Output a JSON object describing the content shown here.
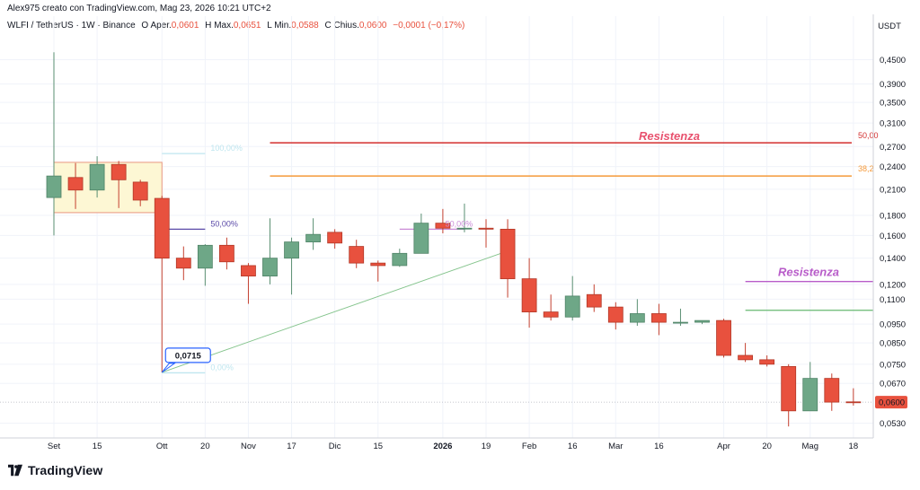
{
  "header": {
    "credit": "Alex975 creato con TradingView.com, Mag 23, 2026 10:21 UTC+2",
    "symbol": "WLFI / TetherUS · 1W · Binance",
    "open_label": "O",
    "open_key": "Aper.",
    "open": "0,0601",
    "high_label": "H",
    "high_key": "Max.",
    "high": "0,0651",
    "low_label": "L",
    "low_key": "Min.",
    "low": "0,0588",
    "close_label": "C",
    "close_key": "Chius.",
    "close": "0,0600",
    "change": "−0,0001 (−0,17%)"
  },
  "brand": {
    "name": "TradingView",
    "logo_icon": "tradingview-logo-icon"
  },
  "colors": {
    "up": "#6ea787",
    "down": "#e8513e",
    "resist_red": "#d32f2f",
    "resist_orange": "#f59a3a",
    "resist_purple": "#b85cc9",
    "support_green": "#67b871",
    "box_fill": "#fdf7d4"
  },
  "chart_data": {
    "type": "candlestick",
    "currency": "USDT",
    "y_scale": "log",
    "ylim": [
      0.0486,
      0.5232
    ],
    "y_ticks": [
      {
        "value": 0.45,
        "label": "0,4500"
      },
      {
        "value": 0.39,
        "label": "0,3900"
      },
      {
        "value": 0.35,
        "label": "0,3500"
      },
      {
        "value": 0.31,
        "label": "0,3100"
      },
      {
        "value": 0.27,
        "label": "0,2700"
      },
      {
        "value": 0.24,
        "label": "0,2400"
      },
      {
        "value": 0.21,
        "label": "0,2100"
      },
      {
        "value": 0.18,
        "label": "0,1800"
      },
      {
        "value": 0.16,
        "label": "0,1600"
      },
      {
        "value": 0.14,
        "label": "0,1400"
      },
      {
        "value": 0.12,
        "label": "0,1200"
      },
      {
        "value": 0.11,
        "label": "0,1100"
      },
      {
        "value": 0.095,
        "label": "0,0950"
      },
      {
        "value": 0.085,
        "label": "0,0850"
      },
      {
        "value": 0.075,
        "label": "0,0750"
      },
      {
        "value": 0.067,
        "label": "0,0670"
      },
      {
        "value": 0.053,
        "label": "0,0530"
      }
    ],
    "x_ticks": [
      {
        "index": 0,
        "label": "Set",
        "bold": false
      },
      {
        "index": 2,
        "label": "15",
        "bold": false
      },
      {
        "index": 5,
        "label": "Ott",
        "bold": false
      },
      {
        "index": 7,
        "label": "20",
        "bold": false
      },
      {
        "index": 9,
        "label": "Nov",
        "bold": false
      },
      {
        "index": 11,
        "label": "17",
        "bold": false
      },
      {
        "index": 13,
        "label": "Dic",
        "bold": false
      },
      {
        "index": 15,
        "label": "15",
        "bold": false
      },
      {
        "index": 18,
        "label": "2026",
        "bold": true
      },
      {
        "index": 20,
        "label": "19",
        "bold": false
      },
      {
        "index": 22,
        "label": "Feb",
        "bold": false
      },
      {
        "index": 24,
        "label": "16",
        "bold": false
      },
      {
        "index": 26,
        "label": "Mar",
        "bold": false
      },
      {
        "index": 28,
        "label": "16",
        "bold": false
      },
      {
        "index": 31,
        "label": "Apr",
        "bold": false
      },
      {
        "index": 33,
        "label": "20",
        "bold": false
      },
      {
        "index": 35,
        "label": "Mag",
        "bold": false
      },
      {
        "index": 37,
        "label": "18",
        "bold": false
      }
    ],
    "candles": [
      {
        "o": 0.2,
        "h": 0.47,
        "l": 0.16,
        "c": 0.227
      },
      {
        "o": 0.225,
        "h": 0.245,
        "l": 0.187,
        "c": 0.209
      },
      {
        "o": 0.209,
        "h": 0.255,
        "l": 0.2,
        "c": 0.243
      },
      {
        "o": 0.243,
        "h": 0.248,
        "l": 0.188,
        "c": 0.222
      },
      {
        "o": 0.219,
        "h": 0.222,
        "l": 0.19,
        "c": 0.197
      },
      {
        "o": 0.199,
        "h": 0.202,
        "l": 0.0715,
        "c": 0.14
      },
      {
        "o": 0.14,
        "h": 0.15,
        "l": 0.123,
        "c": 0.132
      },
      {
        "o": 0.132,
        "h": 0.152,
        "l": 0.119,
        "c": 0.151
      },
      {
        "o": 0.151,
        "h": 0.158,
        "l": 0.131,
        "c": 0.137
      },
      {
        "o": 0.134,
        "h": 0.136,
        "l": 0.107,
        "c": 0.126
      },
      {
        "o": 0.126,
        "h": 0.177,
        "l": 0.12,
        "c": 0.14
      },
      {
        "o": 0.14,
        "h": 0.158,
        "l": 0.113,
        "c": 0.154
      },
      {
        "o": 0.154,
        "h": 0.177,
        "l": 0.147,
        "c": 0.161
      },
      {
        "o": 0.163,
        "h": 0.166,
        "l": 0.148,
        "c": 0.153
      },
      {
        "o": 0.15,
        "h": 0.156,
        "l": 0.132,
        "c": 0.136
      },
      {
        "o": 0.136,
        "h": 0.138,
        "l": 0.122,
        "c": 0.134
      },
      {
        "o": 0.134,
        "h": 0.148,
        "l": 0.133,
        "c": 0.144
      },
      {
        "o": 0.144,
        "h": 0.182,
        "l": 0.144,
        "c": 0.172
      },
      {
        "o": 0.172,
        "h": 0.187,
        "l": 0.162,
        "c": 0.167
      },
      {
        "o": 0.167,
        "h": 0.193,
        "l": 0.163,
        "c": 0.167
      },
      {
        "o": 0.167,
        "h": 0.176,
        "l": 0.149,
        "c": 0.166
      },
      {
        "o": 0.166,
        "h": 0.176,
        "l": 0.111,
        "c": 0.124
      },
      {
        "o": 0.124,
        "h": 0.14,
        "l": 0.093,
        "c": 0.102
      },
      {
        "o": 0.102,
        "h": 0.113,
        "l": 0.097,
        "c": 0.099
      },
      {
        "o": 0.099,
        "h": 0.126,
        "l": 0.097,
        "c": 0.112
      },
      {
        "o": 0.113,
        "h": 0.12,
        "l": 0.102,
        "c": 0.105
      },
      {
        "o": 0.105,
        "h": 0.108,
        "l": 0.092,
        "c": 0.096
      },
      {
        "o": 0.096,
        "h": 0.11,
        "l": 0.094,
        "c": 0.101
      },
      {
        "o": 0.101,
        "h": 0.107,
        "l": 0.089,
        "c": 0.096
      },
      {
        "o": 0.096,
        "h": 0.104,
        "l": 0.094,
        "c": 0.096
      },
      {
        "o": 0.096,
        "h": 0.097,
        "l": 0.095,
        "c": 0.097
      },
      {
        "o": 0.097,
        "h": 0.098,
        "l": 0.078,
        "c": 0.079
      },
      {
        "o": 0.079,
        "h": 0.085,
        "l": 0.076,
        "c": 0.077
      },
      {
        "o": 0.077,
        "h": 0.079,
        "l": 0.074,
        "c": 0.075
      },
      {
        "o": 0.074,
        "h": 0.075,
        "l": 0.052,
        "c": 0.057
      },
      {
        "o": 0.057,
        "h": 0.076,
        "l": 0.057,
        "c": 0.069
      },
      {
        "o": 0.069,
        "h": 0.071,
        "l": 0.057,
        "c": 0.06
      },
      {
        "o": 0.0601,
        "h": 0.0651,
        "l": 0.0588,
        "c": 0.06
      }
    ],
    "last_price": {
      "value": 0.06,
      "label": "0,0600"
    },
    "annotations": {
      "low_callout": {
        "index": 5,
        "value": 0.0715,
        "label": "0,0715"
      },
      "trendline": {
        "from_index": 5,
        "from_value": 0.0715,
        "to_index": 21,
        "to_value": 0.146
      },
      "box": {
        "from_index": 0,
        "to_index": 5,
        "top": 0.246,
        "bottom": 0.183
      },
      "fib_small": [
        {
          "from_index": 5,
          "to_index": 7,
          "value": 0.259,
          "label": "100,00%",
          "color": "#bfe6ef"
        },
        {
          "from_index": 5,
          "to_index": 7,
          "value": 0.166,
          "label": "50,00%",
          "color": "#5b4aa8"
        },
        {
          "from_index": 5,
          "to_index": 7,
          "value": 0.0713,
          "label": "0,00%",
          "color": "#bfe6ef"
        },
        {
          "from_index": 16,
          "to_index": 19,
          "value": 0.166,
          "label": "50,00%",
          "color": "#c98ad6"
        }
      ],
      "resistance_red": {
        "from_index": 10,
        "value": 0.276,
        "label": "Resistenza",
        "pct_label": "50,00"
      },
      "resistance_orange": {
        "from_index": 10,
        "value": 0.227,
        "pct_label": "38,2"
      },
      "resistance_purple": {
        "from_index": 33,
        "value": 0.122,
        "label": "Resistenza"
      },
      "support_green": {
        "from_index": 33,
        "value": 0.103
      }
    }
  }
}
